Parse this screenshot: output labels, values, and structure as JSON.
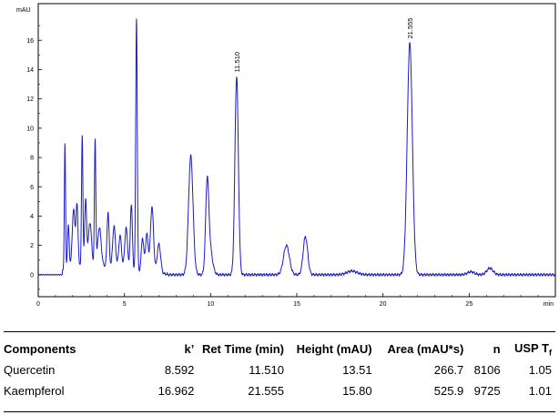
{
  "chart_data": {
    "type": "line",
    "title": "",
    "xlabel": "min",
    "ylabel": "mAU",
    "xlim": [
      0,
      30
    ],
    "ylim": [
      -1.5,
      18.5
    ],
    "x_ticks": [
      0,
      5,
      10,
      15,
      20,
      25
    ],
    "y_ticks": [
      0,
      2,
      4,
      6,
      8,
      10,
      12,
      14,
      16
    ],
    "grid": false,
    "legend": "none",
    "line_color": "#1c1cc8",
    "baseline": 0,
    "peaks": [
      {
        "rt": 1.55,
        "height": 8.6,
        "width": 0.035
      },
      {
        "rt": 1.75,
        "height": 3.0,
        "width": 0.05
      },
      {
        "rt": 2.05,
        "height": 4.0,
        "width": 0.08
      },
      {
        "rt": 2.25,
        "height": 4.2,
        "width": 0.06
      },
      {
        "rt": 2.55,
        "height": 8.9,
        "width": 0.04
      },
      {
        "rt": 2.75,
        "height": 4.5,
        "width": 0.06
      },
      {
        "rt": 3.0,
        "height": 3.0,
        "width": 0.09
      },
      {
        "rt": 3.3,
        "height": 8.5,
        "width": 0.04
      },
      {
        "rt": 3.55,
        "height": 2.6,
        "width": 0.1
      },
      {
        "rt": 4.05,
        "height": 3.7,
        "width": 0.06
      },
      {
        "rt": 4.4,
        "height": 2.8,
        "width": 0.08
      },
      {
        "rt": 4.75,
        "height": 2.2,
        "width": 0.08
      },
      {
        "rt": 5.1,
        "height": 2.8,
        "width": 0.08
      },
      {
        "rt": 5.4,
        "height": 4.5,
        "width": 0.06
      },
      {
        "rt": 5.7,
        "height": 17.2,
        "width": 0.045
      },
      {
        "rt": 6.05,
        "height": 2.3,
        "width": 0.07
      },
      {
        "rt": 6.3,
        "height": 2.6,
        "width": 0.08
      },
      {
        "rt": 6.6,
        "height": 4.5,
        "width": 0.09
      },
      {
        "rt": 7.0,
        "height": 2.0,
        "width": 0.1
      },
      {
        "rt": 8.85,
        "height": 8.1,
        "width": 0.13
      },
      {
        "rt": 9.8,
        "height": 5.6,
        "width": 0.09
      },
      {
        "rt": 9.95,
        "height": 1.8,
        "width": 0.15
      },
      {
        "rt": 11.51,
        "height": 13.51,
        "width": 0.1
      },
      {
        "rt": 14.4,
        "height": 2.0,
        "width": 0.17
      },
      {
        "rt": 15.5,
        "height": 2.6,
        "width": 0.13
      },
      {
        "rt": 18.2,
        "height": 0.25,
        "width": 0.3
      },
      {
        "rt": 21.555,
        "height": 15.8,
        "width": 0.15
      },
      {
        "rt": 25.1,
        "height": 0.2,
        "width": 0.2
      },
      {
        "rt": 26.2,
        "height": 0.45,
        "width": 0.18
      }
    ],
    "peak_labels": [
      "11.510",
      "21.555"
    ]
  },
  "results": {
    "headers": [
      "Components",
      "k’",
      "Ret Time (min)",
      "Height (mAU)",
      "Area (mAU*s)",
      "n",
      "USP T"
    ],
    "usp_subscript": "f",
    "rows": [
      [
        "Quercetin",
        "8.592",
        "11.510",
        "13.51",
        "266.7",
        "8106",
        "1.05"
      ],
      [
        "Kaempferol",
        "16.962",
        "21.555",
        "15.80",
        "525.9",
        "9725",
        "1.01"
      ]
    ]
  }
}
